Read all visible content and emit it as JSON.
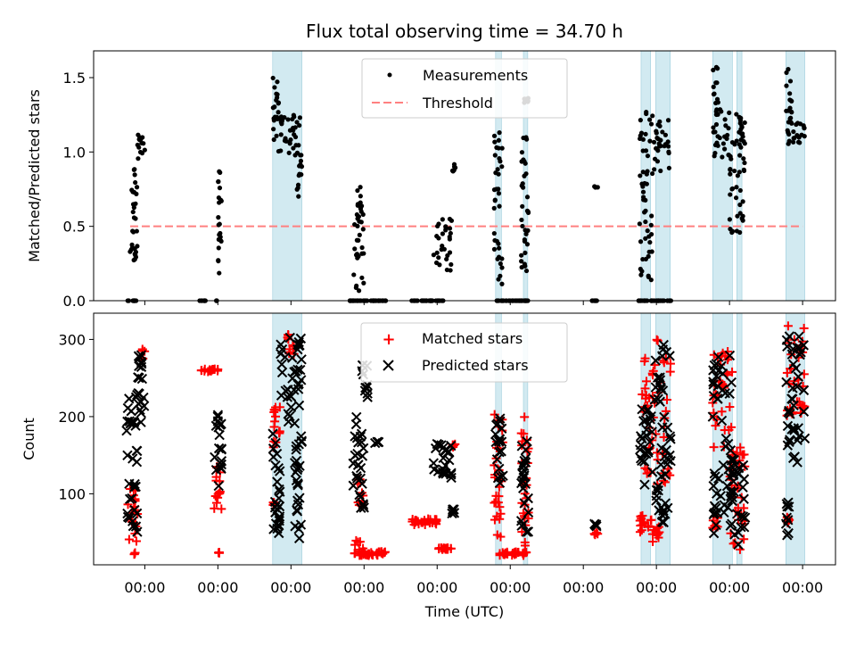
{
  "chart_data": [
    {
      "type": "scatter",
      "title": "Flux total observing time = 34.70 h",
      "xlabel": "",
      "ylabel": "Matched/Predicted stars",
      "ylim": [
        0,
        1.68
      ],
      "yticks": [
        "0.0",
        "0.5",
        "1.0",
        "1.5"
      ],
      "ytick_values": [
        0,
        0.5,
        1.0,
        1.5
      ],
      "xlim": [
        -0.7,
        9.45
      ],
      "xtick_values": [
        0,
        1,
        2,
        3,
        4,
        5,
        6,
        7,
        8,
        9
      ],
      "legend_position": "top-center",
      "legend": [
        "Measurements",
        "Threshold"
      ],
      "colors": {
        "points": "#000000",
        "threshold": "#ff8080",
        "bands": "#add8e6"
      },
      "threshold": {
        "y": 0.5,
        "x_range": [
          -0.2,
          9.0
        ]
      },
      "shaded_intervals": [
        [
          1.75,
          2.15
        ],
        [
          4.8,
          4.88
        ],
        [
          5.18,
          5.24
        ],
        [
          6.79,
          6.92
        ],
        [
          6.99,
          7.19
        ],
        [
          7.77,
          8.04
        ],
        [
          8.1,
          8.17
        ],
        [
          8.77,
          9.03
        ]
      ],
      "series": [
        {
          "name": "Measurements",
          "clusters": [
            {
              "x": [
                -0.25,
                -0.1
              ],
              "y": [
                0.0,
                0.0
              ]
            },
            {
              "x": [
                -0.22,
                -0.1
              ],
              "y": [
                0.25,
                0.5
              ]
            },
            {
              "x": [
                -0.18,
                -0.1
              ],
              "y": [
                0.55,
                0.9
              ]
            },
            {
              "x": [
                -0.1,
                0.0
              ],
              "y": [
                0.9,
                1.13
              ]
            },
            {
              "x": [
                0.75,
                0.85
              ],
              "y": [
                0.0,
                0.0
              ]
            },
            {
              "x": [
                0.95,
                1.0
              ],
              "y": [
                0.0,
                0.0
              ]
            },
            {
              "x": [
                1.0,
                1.05
              ],
              "y": [
                0.18,
                0.88
              ]
            },
            {
              "x": [
                1.75,
                2.15
              ],
              "y": [
                0.97,
                1.25
              ]
            },
            {
              "x": [
                1.75,
                1.85
              ],
              "y": [
                1.2,
                1.5
              ]
            },
            {
              "x": [
                2.08,
                2.15
              ],
              "y": [
                0.7,
                1.0
              ]
            },
            {
              "x": [
                2.8,
                3.3
              ],
              "y": [
                0.0,
                0.0
              ]
            },
            {
              "x": [
                2.85,
                3.0
              ],
              "y": [
                0.05,
                0.6
              ]
            },
            {
              "x": [
                2.9,
                2.97
              ],
              "y": [
                0.55,
                0.78
              ]
            },
            {
              "x": [
                3.65,
                4.1
              ],
              "y": [
                0.0,
                0.0
              ]
            },
            {
              "x": [
                3.95,
                4.2
              ],
              "y": [
                0.2,
                0.55
              ]
            },
            {
              "x": [
                4.2,
                4.25
              ],
              "y": [
                0.85,
                0.92
              ]
            },
            {
              "x": [
                4.78,
                5.25
              ],
              "y": [
                0.0,
                0.0
              ]
            },
            {
              "x": [
                4.78,
                4.9
              ],
              "y": [
                0.1,
                1.2
              ]
            },
            {
              "x": [
                5.15,
                5.25
              ],
              "y": [
                0.2,
                1.2
              ]
            },
            {
              "x": [
                5.18,
                5.25
              ],
              "y": [
                1.33,
                1.37
              ]
            },
            {
              "x": [
                6.1,
                6.2
              ],
              "y": [
                0.0,
                0.0
              ]
            },
            {
              "x": [
                6.15,
                6.2
              ],
              "y": [
                0.76,
                0.77
              ]
            },
            {
              "x": [
                6.75,
                7.2
              ],
              "y": [
                0.0,
                0.0
              ]
            },
            {
              "x": [
                6.77,
                7.2
              ],
              "y": [
                0.85,
                1.28
              ]
            },
            {
              "x": [
                6.77,
                6.95
              ],
              "y": [
                0.1,
                0.9
              ]
            },
            {
              "x": [
                7.77,
                8.17
              ],
              "y": [
                0.95,
                1.3
              ]
            },
            {
              "x": [
                7.77,
                7.85
              ],
              "y": [
                1.25,
                1.58
              ]
            },
            {
              "x": [
                8.0,
                8.22
              ],
              "y": [
                0.45,
                1.0
              ]
            },
            {
              "x": [
                8.15,
                8.22
              ],
              "y": [
                1.05,
                1.2
              ]
            },
            {
              "x": [
                8.77,
                9.03
              ],
              "y": [
                1.05,
                1.2
              ]
            },
            {
              "x": [
                8.77,
                8.85
              ],
              "y": [
                1.2,
                1.6
              ]
            }
          ]
        },
        {
          "name": "Threshold",
          "y": 0.5
        }
      ]
    },
    {
      "type": "scatter",
      "title": "",
      "xlabel": "Time (UTC)",
      "ylabel": "Count",
      "ylim": [
        8,
        334
      ],
      "yticks": [
        "100",
        "200",
        "300"
      ],
      "ytick_values": [
        100,
        200,
        300
      ],
      "xlim": [
        -0.7,
        9.45
      ],
      "xtick_values": [
        0,
        1,
        2,
        3,
        4,
        5,
        6,
        7,
        8,
        9
      ],
      "xtick_labels": [
        "00:00",
        "00:00",
        "00:00",
        "00:00",
        "00:00",
        "00:00",
        "00:00",
        "00:00",
        "00:00",
        "00:00"
      ],
      "legend_position": "top-center",
      "legend": [
        "Matched stars",
        "Predicted stars"
      ],
      "colors": {
        "matched": "#ff0000",
        "predicted": "#000000"
      },
      "shaded_intervals": [
        [
          1.75,
          2.15
        ],
        [
          4.8,
          4.88
        ],
        [
          5.18,
          5.24
        ],
        [
          6.79,
          6.92
        ],
        [
          6.99,
          7.19
        ],
        [
          7.77,
          8.04
        ],
        [
          8.1,
          8.17
        ],
        [
          8.77,
          9.03
        ]
      ],
      "series": [
        {
          "name": "Matched stars",
          "clusters": [
            {
              "x": [
                -0.25,
                -0.1
              ],
              "y": [
                20,
                115
              ]
            },
            {
              "x": [
                -0.05,
                0.0
              ],
              "y": [
                270,
                290
              ]
            },
            {
              "x": [
                0.75,
                1.0
              ],
              "y": [
                258,
                262
              ]
            },
            {
              "x": [
                0.95,
                1.05
              ],
              "y": [
                80,
                140
              ]
            },
            {
              "x": [
                1.0,
                1.03
              ],
              "y": [
                23,
                26
              ]
            },
            {
              "x": [
                1.75,
                1.85
              ],
              "y": [
                160,
                220
              ]
            },
            {
              "x": [
                1.75,
                1.8
              ],
              "y": [
                85,
                90
              ]
            },
            {
              "x": [
                1.95,
                2.05
              ],
              "y": [
                280,
                310
              ]
            },
            {
              "x": [
                2.85,
                3.0
              ],
              "y": [
                20,
                40
              ]
            },
            {
              "x": [
                2.95,
                3.3
              ],
              "y": [
                20,
                25
              ]
            },
            {
              "x": [
                2.9,
                3.0
              ],
              "y": [
                85,
                120
              ]
            },
            {
              "x": [
                3.65,
                4.0
              ],
              "y": [
                60,
                68
              ]
            },
            {
              "x": [
                4.0,
                4.2
              ],
              "y": [
                28,
                30
              ]
            },
            {
              "x": [
                4.2,
                4.25
              ],
              "y": [
                160,
                165
              ]
            },
            {
              "x": [
                4.78,
                4.9
              ],
              "y": [
                40,
                205
              ]
            },
            {
              "x": [
                4.85,
                5.25
              ],
              "y": [
                20,
                25
              ]
            },
            {
              "x": [
                5.15,
                5.25
              ],
              "y": [
                30,
                200
              ]
            },
            {
              "x": [
                6.15,
                6.2
              ],
              "y": [
                45,
                50
              ]
            },
            {
              "x": [
                6.77,
                6.95
              ],
              "y": [
                45,
                75
              ]
            },
            {
              "x": [
                6.95,
                7.05
              ],
              "y": [
                35,
                58
              ]
            },
            {
              "x": [
                6.8,
                7.2
              ],
              "y": [
                110,
                300
              ]
            },
            {
              "x": [
                7.77,
                8.04
              ],
              "y": [
                160,
                285
              ]
            },
            {
              "x": [
                7.77,
                7.85
              ],
              "y": [
                55,
                70
              ]
            },
            {
              "x": [
                8.0,
                8.22
              ],
              "y": [
                20,
                160
              ]
            },
            {
              "x": [
                8.77,
                9.03
              ],
              "y": [
                200,
                320
              ]
            },
            {
              "x": [
                8.77,
                8.82
              ],
              "y": [
                55,
                70
              ]
            }
          ]
        },
        {
          "name": "Predicted stars",
          "clusters": [
            {
              "x": [
                -0.25,
                -0.1
              ],
              "y": [
                50,
                230
              ]
            },
            {
              "x": [
                -0.1,
                0.0
              ],
              "y": [
                180,
                280
              ]
            },
            {
              "x": [
                0.95,
                1.05
              ],
              "y": [
                110,
                205
              ]
            },
            {
              "x": [
                1.75,
                1.85
              ],
              "y": [
                40,
                200
              ]
            },
            {
              "x": [
                1.85,
                2.15
              ],
              "y": [
                180,
                305
              ]
            },
            {
              "x": [
                2.05,
                2.15
              ],
              "y": [
                40,
                180
              ]
            },
            {
              "x": [
                2.85,
                3.0
              ],
              "y": [
                75,
                205
              ]
            },
            {
              "x": [
                2.97,
                3.05
              ],
              "y": [
                225,
                270
              ]
            },
            {
              "x": [
                3.15,
                3.2
              ],
              "y": [
                162,
                168
              ]
            },
            {
              "x": [
                3.95,
                4.2
              ],
              "y": [
                120,
                165
              ]
            },
            {
              "x": [
                4.2,
                4.25
              ],
              "y": [
                70,
                80
              ]
            },
            {
              "x": [
                4.78,
                4.9
              ],
              "y": [
                110,
                200
              ]
            },
            {
              "x": [
                5.15,
                5.25
              ],
              "y": [
                50,
                200
              ]
            },
            {
              "x": [
                6.15,
                6.2
              ],
              "y": [
                58,
                62
              ]
            },
            {
              "x": [
                6.77,
                6.95
              ],
              "y": [
                100,
                210
              ]
            },
            {
              "x": [
                6.95,
                7.2
              ],
              "y": [
                60,
                300
              ]
            },
            {
              "x": [
                7.77,
                8.04
              ],
              "y": [
                45,
                280
              ]
            },
            {
              "x": [
                8.0,
                8.22
              ],
              "y": [
                30,
                150
              ]
            },
            {
              "x": [
                8.77,
                9.03
              ],
              "y": [
                140,
                310
              ]
            },
            {
              "x": [
                8.77,
                8.82
              ],
              "y": [
                45,
                92
              ]
            }
          ]
        }
      ]
    }
  ]
}
